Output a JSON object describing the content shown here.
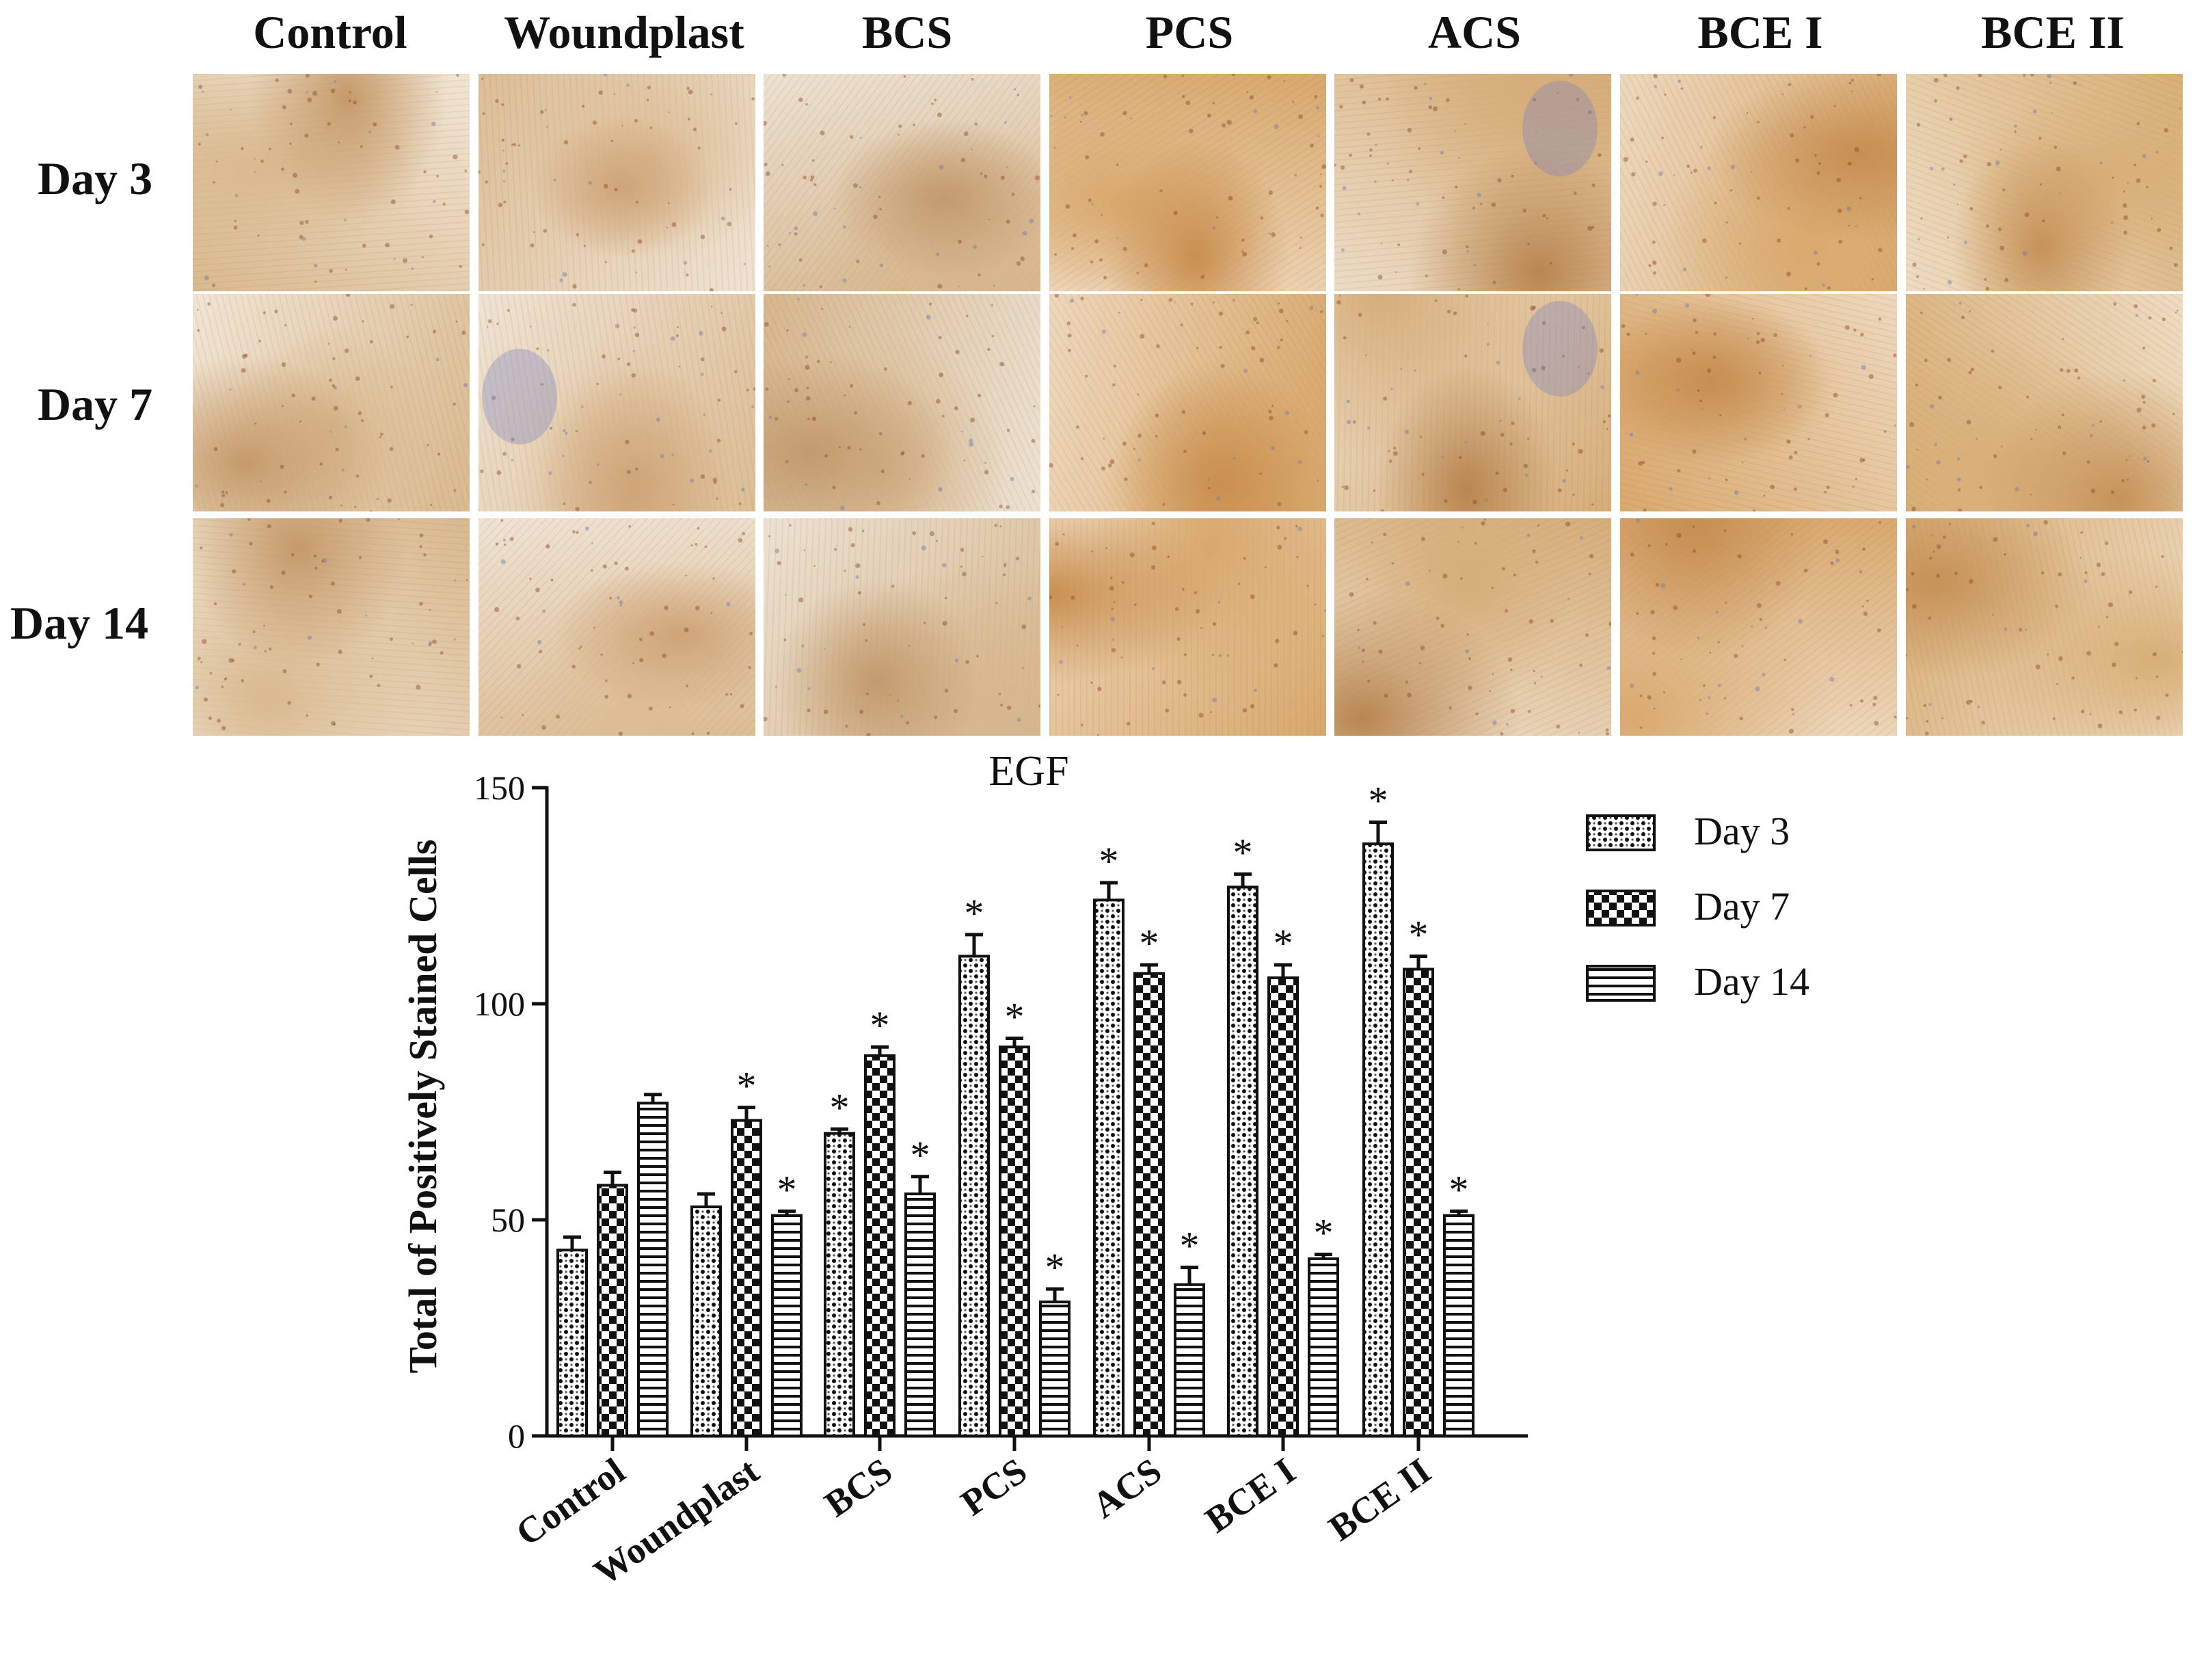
{
  "figure": {
    "columns": [
      "Control",
      "Woundplast",
      "BCS",
      "PCS",
      "ACS",
      "BCE I",
      "BCE II"
    ],
    "rows": [
      "Day 3",
      "Day 7",
      "Day 14"
    ]
  },
  "chart_data": {
    "type": "bar",
    "title": "EGF",
    "xlabel": "",
    "ylabel": "Total of Positively Stained Cells",
    "ylim": [
      0,
      150
    ],
    "yticks": [
      0,
      50,
      100,
      150
    ],
    "categories": [
      "Control",
      "Woundplast",
      "BCS",
      "PCS",
      "ACS",
      "BCE I",
      "BCE II"
    ],
    "series": [
      {
        "name": "Day 3",
        "pattern": "dots",
        "values": [
          43,
          53,
          70,
          111,
          124,
          127,
          137
        ],
        "errors": [
          3,
          3,
          1,
          5,
          4,
          3,
          5
        ],
        "significant": [
          false,
          false,
          true,
          true,
          true,
          true,
          true
        ]
      },
      {
        "name": "Day 7",
        "pattern": "checker",
        "values": [
          58,
          73,
          88,
          90,
          107,
          106,
          108
        ],
        "errors": [
          3,
          3,
          2,
          2,
          2,
          3,
          3
        ],
        "significant": [
          false,
          true,
          true,
          true,
          true,
          true,
          true
        ]
      },
      {
        "name": "Day 14",
        "pattern": "stripes",
        "values": [
          77,
          51,
          56,
          31,
          35,
          41,
          51
        ],
        "errors": [
          2,
          1,
          4,
          3,
          4,
          1,
          1
        ],
        "significant": [
          false,
          true,
          true,
          true,
          true,
          true,
          true
        ]
      }
    ],
    "significance_marker": "*",
    "legend_position": "right",
    "grid": false
  }
}
